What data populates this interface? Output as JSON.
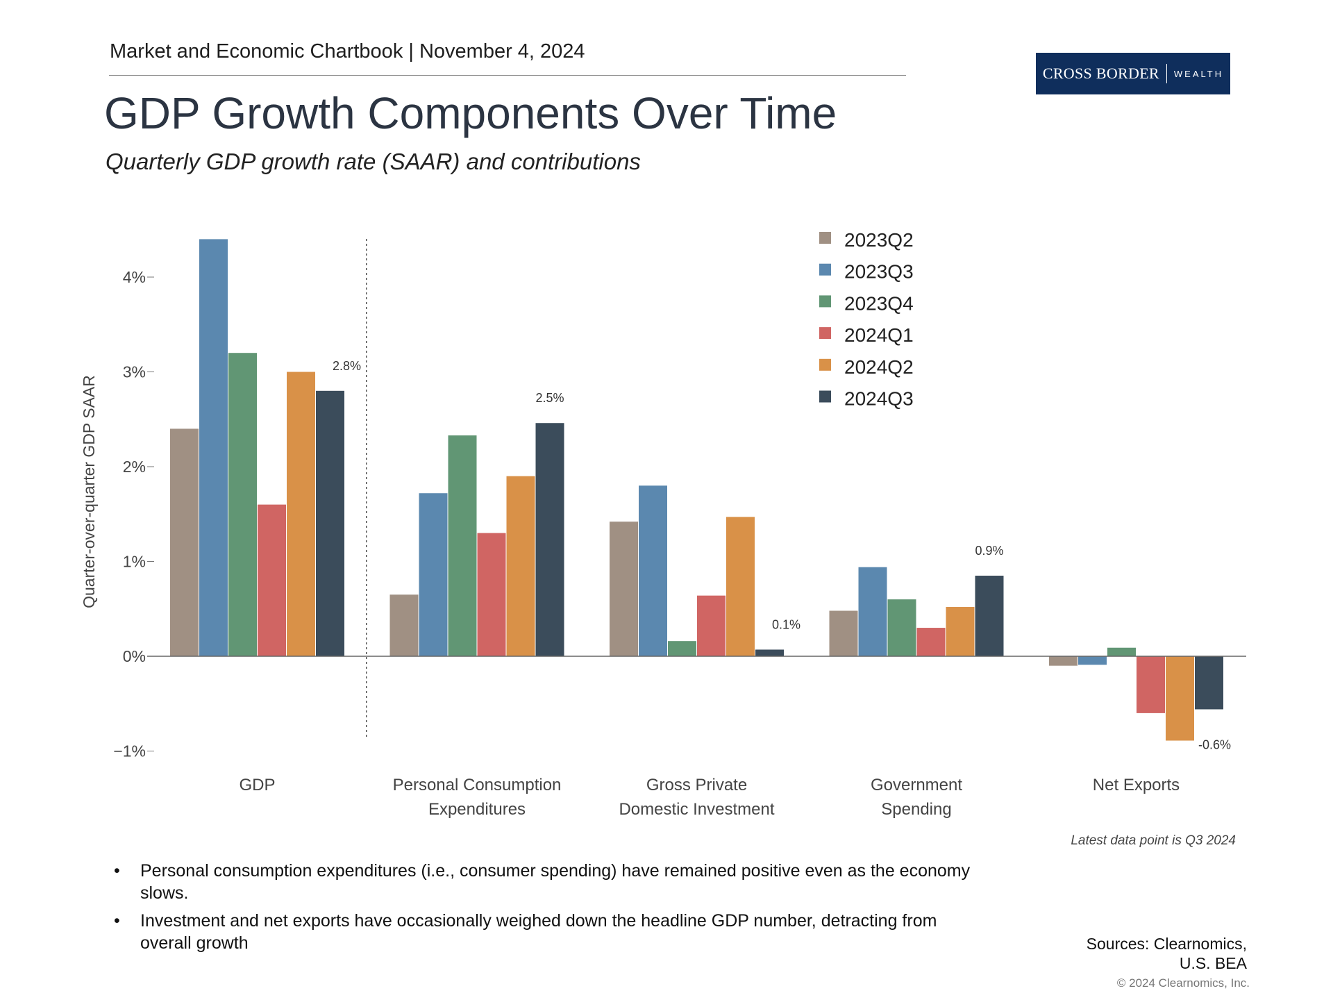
{
  "header": {
    "chartbook": "Market and Economic Chartbook | November 4, 2024",
    "title": "GDP Growth Components Over Time",
    "subtitle": "Quarterly GDP growth rate (SAAR) and contributions"
  },
  "logo": {
    "main": "CROSS BORDER",
    "sub": "WEALTH"
  },
  "chart_data": {
    "type": "bar",
    "title": "GDP Growth Components Over Time",
    "ylabel": "Quarter-over-quarter GDP SAAR",
    "xlabel": "",
    "ylim": [
      -1,
      4.4
    ],
    "yticks": [
      -1,
      0,
      1,
      2,
      3,
      4
    ],
    "ytick_labels": [
      "−1%",
      "0%",
      "1%",
      "2%",
      "3%",
      "4%"
    ],
    "categories": [
      [
        "GDP"
      ],
      [
        "Personal Consumption",
        "Expenditures"
      ],
      [
        "Gross Private",
        "Domestic Investment"
      ],
      [
        "Government",
        "Spending"
      ],
      [
        "Net Exports"
      ]
    ],
    "series": [
      {
        "name": "2023Q2",
        "color": "#a09083",
        "values": [
          2.4,
          0.65,
          1.42,
          0.48,
          -0.1
        ]
      },
      {
        "name": "2023Q3",
        "color": "#5b88af",
        "values": [
          4.4,
          1.72,
          1.8,
          0.94,
          -0.09
        ]
      },
      {
        "name": "2023Q4",
        "color": "#619674",
        "values": [
          3.2,
          2.33,
          0.16,
          0.6,
          0.09
        ]
      },
      {
        "name": "2024Q1",
        "color": "#d06563",
        "values": [
          1.6,
          1.3,
          0.64,
          0.3,
          -0.6
        ]
      },
      {
        "name": "2024Q2",
        "color": "#d99148",
        "values": [
          3.0,
          1.9,
          1.47,
          0.52,
          -0.89
        ]
      },
      {
        "name": "2024Q3",
        "color": "#3b4c5b",
        "values": [
          2.8,
          2.46,
          0.07,
          0.85,
          -0.56
        ]
      }
    ],
    "data_labels": [
      "2.8%",
      "2.5%",
      "0.1%",
      "0.9%",
      "-0.6%"
    ],
    "divider_after_category": 0,
    "legend_position": "top-right",
    "grid": false
  },
  "note": "Latest data point is Q3 2024",
  "bullets": [
    "Personal consumption expenditures (i.e., consumer spending) have remained positive even as the economy slows.",
    "Investment and net exports have occasionally weighed down the headline GDP number, detracting from overall growth"
  ],
  "sources": {
    "line1": "Sources: Clearnomics,",
    "line2": "U.S. BEA"
  },
  "copyright": "© 2024 Clearnomics, Inc."
}
